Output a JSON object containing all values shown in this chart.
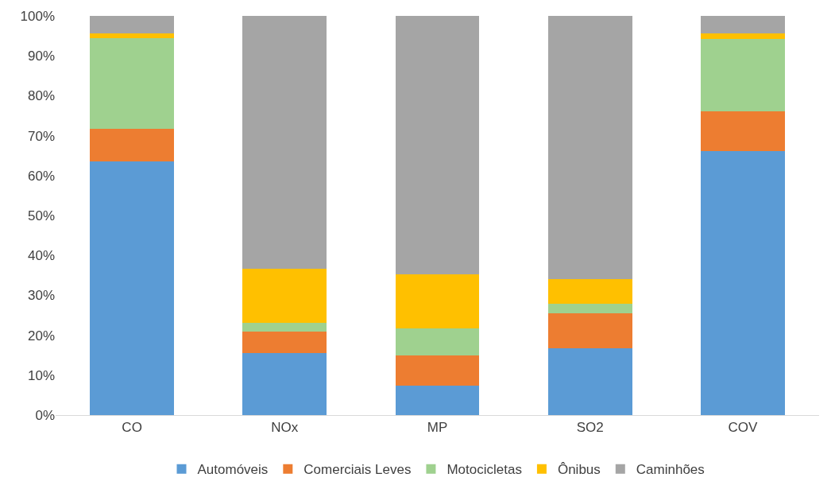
{
  "chart_data": {
    "type": "bar",
    "stacked": true,
    "categories": [
      "CO",
      "NOx",
      "MP",
      "SO2",
      "COV"
    ],
    "series": [
      {
        "name": "Automóveis",
        "color": "#5b9bd5",
        "values": [
          63.5,
          15.5,
          7.3,
          16.7,
          66.2
        ]
      },
      {
        "name": "Comerciais Leves",
        "color": "#ed7d31",
        "values": [
          8.2,
          5.5,
          7.6,
          8.8,
          9.8
        ]
      },
      {
        "name": "Motocicletas",
        "color": "#9fd18f",
        "values": [
          22.8,
          2.2,
          6.9,
          2.4,
          18.3
        ]
      },
      {
        "name": "Ônibus",
        "color": "#ffc000",
        "values": [
          1.2,
          13.5,
          13.4,
          6.1,
          1.4
        ]
      },
      {
        "name": "Caminhões",
        "color": "#a5a5a5",
        "values": [
          4.3,
          63.3,
          64.8,
          66.0,
          4.3
        ]
      }
    ],
    "ylim": [
      0,
      100
    ],
    "yticks": [
      {
        "value": 0,
        "label": "0%"
      },
      {
        "value": 10,
        "label": "10%"
      },
      {
        "value": 20,
        "label": "20%"
      },
      {
        "value": 30,
        "label": "30%"
      },
      {
        "value": 40,
        "label": "40%"
      },
      {
        "value": 50,
        "label": "50%"
      },
      {
        "value": 60,
        "label": "60%"
      },
      {
        "value": 70,
        "label": "70%"
      },
      {
        "value": 80,
        "label": "80%"
      },
      {
        "value": 90,
        "label": "90%"
      },
      {
        "value": 100,
        "label": "100%"
      }
    ],
    "grid": false,
    "legend": "bottom"
  }
}
